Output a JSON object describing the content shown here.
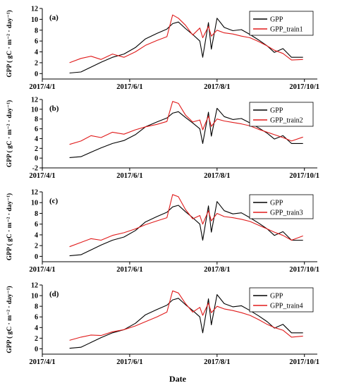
{
  "chart_data": [
    {
      "type": "line",
      "panel_label": "(a)",
      "ylabel": "GPP ( gC · m⁻² · day⁻¹)",
      "ylim": [
        -1,
        12
      ],
      "yticks": [
        0,
        2,
        4,
        6,
        8,
        10,
        12
      ],
      "xlim": [
        "2017-04-01",
        "2017-10-10"
      ],
      "xtick_labels": [
        "2017/4/1",
        "2017/6/1",
        "2017/8/1",
        "2017/10/1"
      ],
      "xtick_dates": [
        "2017-04-01",
        "2017-06-01",
        "2017-08-01",
        "2017-10-01"
      ],
      "legend_position": "top-right",
      "series": [
        {
          "name": "GPP",
          "color": "#000000",
          "x": [
            "2017-04-20",
            "2017-04-28",
            "2017-05-05",
            "2017-05-12",
            "2017-05-20",
            "2017-05-28",
            "2017-06-05",
            "2017-06-12",
            "2017-06-20",
            "2017-06-27",
            "2017-07-01",
            "2017-07-05",
            "2017-07-10",
            "2017-07-15",
            "2017-07-20",
            "2017-07-22",
            "2017-07-26",
            "2017-07-28",
            "2017-08-01",
            "2017-08-06",
            "2017-08-12",
            "2017-08-18",
            "2017-08-24",
            "2017-08-30",
            "2017-09-05",
            "2017-09-10",
            "2017-09-16",
            "2017-09-22",
            "2017-09-30"
          ],
          "y": [
            0.1,
            0.3,
            1.2,
            2.1,
            3.0,
            3.6,
            4.8,
            6.4,
            7.4,
            8.2,
            9.2,
            9.5,
            8.3,
            7.2,
            6.0,
            3.0,
            9.4,
            4.5,
            10.2,
            8.5,
            7.9,
            8.1,
            7.2,
            6.2,
            5.1,
            3.9,
            4.6,
            3.0,
            3.0
          ]
        },
        {
          "name": "GPP_train1",
          "color": "#e01b1b",
          "x": [
            "2017-04-20",
            "2017-04-28",
            "2017-05-05",
            "2017-05-12",
            "2017-05-20",
            "2017-05-28",
            "2017-06-05",
            "2017-06-12",
            "2017-06-20",
            "2017-06-27",
            "2017-07-01",
            "2017-07-05",
            "2017-07-10",
            "2017-07-15",
            "2017-07-20",
            "2017-07-22",
            "2017-07-26",
            "2017-07-28",
            "2017-08-01",
            "2017-08-06",
            "2017-08-12",
            "2017-08-18",
            "2017-08-24",
            "2017-08-30",
            "2017-09-05",
            "2017-09-10",
            "2017-09-16",
            "2017-09-22",
            "2017-09-30"
          ],
          "y": [
            2.0,
            2.8,
            3.2,
            2.6,
            3.6,
            3.0,
            4.0,
            5.2,
            6.1,
            6.8,
            10.8,
            10.2,
            8.9,
            7.1,
            8.4,
            6.6,
            8.7,
            6.9,
            8.0,
            7.5,
            7.3,
            6.9,
            6.6,
            5.9,
            5.1,
            4.3,
            3.7,
            2.5,
            2.6
          ]
        }
      ]
    },
    {
      "type": "line",
      "panel_label": "(b)",
      "ylabel": "GPP ( gC · m⁻² · day⁻¹)",
      "ylim": [
        -2,
        12
      ],
      "yticks": [
        -2,
        0,
        2,
        4,
        6,
        8,
        10,
        12
      ],
      "xlim": [
        "2017-04-01",
        "2017-10-10"
      ],
      "xtick_labels": [
        "2017/4/1",
        "2017/6/1",
        "2017/8/1",
        "2017/10/1"
      ],
      "xtick_dates": [
        "2017-04-01",
        "2017-06-01",
        "2017-08-01",
        "2017-10-01"
      ],
      "legend_position": "top-right",
      "series": [
        {
          "name": "GPP",
          "color": "#000000",
          "x": [
            "2017-04-20",
            "2017-04-28",
            "2017-05-05",
            "2017-05-12",
            "2017-05-20",
            "2017-05-28",
            "2017-06-05",
            "2017-06-12",
            "2017-06-20",
            "2017-06-27",
            "2017-07-01",
            "2017-07-05",
            "2017-07-10",
            "2017-07-15",
            "2017-07-20",
            "2017-07-22",
            "2017-07-26",
            "2017-07-28",
            "2017-08-01",
            "2017-08-06",
            "2017-08-12",
            "2017-08-18",
            "2017-08-24",
            "2017-08-30",
            "2017-09-05",
            "2017-09-10",
            "2017-09-16",
            "2017-09-22",
            "2017-09-30"
          ],
          "y": [
            0.1,
            0.3,
            1.2,
            2.1,
            3.0,
            3.6,
            4.8,
            6.4,
            7.4,
            8.2,
            9.2,
            9.5,
            8.3,
            7.2,
            6.0,
            3.0,
            9.4,
            4.5,
            10.2,
            8.5,
            7.9,
            8.1,
            7.2,
            6.2,
            5.1,
            3.9,
            4.6,
            3.0,
            3.0
          ]
        },
        {
          "name": "GPP_train2",
          "color": "#e01b1b",
          "x": [
            "2017-04-20",
            "2017-04-28",
            "2017-05-05",
            "2017-05-12",
            "2017-05-20",
            "2017-05-28",
            "2017-06-05",
            "2017-06-12",
            "2017-06-20",
            "2017-06-27",
            "2017-07-01",
            "2017-07-05",
            "2017-07-10",
            "2017-07-15",
            "2017-07-20",
            "2017-07-22",
            "2017-07-26",
            "2017-07-28",
            "2017-08-01",
            "2017-08-06",
            "2017-08-12",
            "2017-08-18",
            "2017-08-24",
            "2017-08-30",
            "2017-09-05",
            "2017-09-10",
            "2017-09-16",
            "2017-09-22",
            "2017-09-30"
          ],
          "y": [
            2.8,
            3.5,
            4.6,
            4.2,
            5.3,
            4.9,
            5.8,
            6.4,
            6.9,
            7.5,
            11.6,
            11.2,
            8.8,
            7.4,
            7.8,
            5.8,
            8.6,
            6.5,
            8.0,
            7.6,
            7.3,
            7.0,
            6.6,
            5.9,
            5.3,
            4.8,
            4.2,
            3.5,
            4.3
          ]
        }
      ]
    },
    {
      "type": "line",
      "panel_label": "(c)",
      "ylabel": "GPP ( gC · m⁻² · day⁻¹)",
      "ylim": [
        -1,
        12
      ],
      "yticks": [
        0,
        2,
        4,
        6,
        8,
        10,
        12
      ],
      "xlim": [
        "2017-04-01",
        "2017-10-10"
      ],
      "xtick_labels": [
        "2017/4/1",
        "2017/6/1",
        "2017/8/1",
        "2017/10/1"
      ],
      "xtick_dates": [
        "2017-04-01",
        "2017-06-01",
        "2017-08-01",
        "2017-10-01"
      ],
      "legend_position": "top-right",
      "series": [
        {
          "name": "GPP",
          "color": "#000000",
          "x": [
            "2017-04-20",
            "2017-04-28",
            "2017-05-05",
            "2017-05-12",
            "2017-05-20",
            "2017-05-28",
            "2017-06-05",
            "2017-06-12",
            "2017-06-20",
            "2017-06-27",
            "2017-07-01",
            "2017-07-05",
            "2017-07-10",
            "2017-07-15",
            "2017-07-20",
            "2017-07-22",
            "2017-07-26",
            "2017-07-28",
            "2017-08-01",
            "2017-08-06",
            "2017-08-12",
            "2017-08-18",
            "2017-08-24",
            "2017-08-30",
            "2017-09-05",
            "2017-09-10",
            "2017-09-16",
            "2017-09-22",
            "2017-09-30"
          ],
          "y": [
            0.1,
            0.3,
            1.2,
            2.1,
            3.0,
            3.6,
            4.8,
            6.4,
            7.4,
            8.2,
            9.2,
            9.5,
            8.3,
            7.2,
            6.0,
            3.0,
            9.4,
            4.5,
            10.2,
            8.5,
            7.9,
            8.1,
            7.2,
            6.2,
            5.1,
            3.9,
            4.6,
            3.0,
            3.0
          ]
        },
        {
          "name": "GPP_train3",
          "color": "#e01b1b",
          "x": [
            "2017-04-20",
            "2017-04-28",
            "2017-05-05",
            "2017-05-12",
            "2017-05-20",
            "2017-05-28",
            "2017-06-05",
            "2017-06-12",
            "2017-06-20",
            "2017-06-27",
            "2017-07-01",
            "2017-07-05",
            "2017-07-10",
            "2017-07-15",
            "2017-07-20",
            "2017-07-22",
            "2017-07-26",
            "2017-07-28",
            "2017-08-01",
            "2017-08-06",
            "2017-08-12",
            "2017-08-18",
            "2017-08-24",
            "2017-08-30",
            "2017-09-05",
            "2017-09-10",
            "2017-09-16",
            "2017-09-22",
            "2017-09-30"
          ],
          "y": [
            1.8,
            2.6,
            3.3,
            3.0,
            3.9,
            4.4,
            5.1,
            5.9,
            6.6,
            7.2,
            11.5,
            11.1,
            8.7,
            7.0,
            7.6,
            6.0,
            8.5,
            6.6,
            8.0,
            7.4,
            7.2,
            6.9,
            6.5,
            5.8,
            5.1,
            4.5,
            3.9,
            3.0,
            3.8
          ]
        }
      ]
    },
    {
      "type": "line",
      "panel_label": "(d)",
      "ylabel": "GPP ( gC · m⁻² · day⁻¹)",
      "ylim": [
        -1,
        12
      ],
      "yticks": [
        0,
        2,
        4,
        6,
        8,
        10,
        12
      ],
      "xlim": [
        "2017-04-01",
        "2017-10-10"
      ],
      "xtick_labels": [
        "2017/4/1",
        "2017/6/1",
        "2017/8/1",
        "2017/10/1"
      ],
      "xtick_dates": [
        "2017-04-01",
        "2017-06-01",
        "2017-08-01",
        "2017-10-01"
      ],
      "legend_position": "top-right",
      "series": [
        {
          "name": "GPP",
          "color": "#000000",
          "x": [
            "2017-04-20",
            "2017-04-28",
            "2017-05-05",
            "2017-05-12",
            "2017-05-20",
            "2017-05-28",
            "2017-06-05",
            "2017-06-12",
            "2017-06-20",
            "2017-06-27",
            "2017-07-01",
            "2017-07-05",
            "2017-07-10",
            "2017-07-15",
            "2017-07-20",
            "2017-07-22",
            "2017-07-26",
            "2017-07-28",
            "2017-08-01",
            "2017-08-06",
            "2017-08-12",
            "2017-08-18",
            "2017-08-24",
            "2017-08-30",
            "2017-09-05",
            "2017-09-10",
            "2017-09-16",
            "2017-09-22",
            "2017-09-30"
          ],
          "y": [
            0.1,
            0.3,
            1.2,
            2.1,
            3.0,
            3.6,
            4.8,
            6.4,
            7.4,
            8.2,
            9.2,
            9.5,
            8.3,
            7.2,
            6.0,
            3.0,
            9.4,
            4.5,
            10.2,
            8.5,
            7.9,
            8.1,
            7.2,
            6.2,
            5.1,
            3.9,
            4.6,
            3.0,
            3.0
          ]
        },
        {
          "name": "GPP_train4",
          "color": "#e01b1b",
          "x": [
            "2017-04-20",
            "2017-04-28",
            "2017-05-05",
            "2017-05-12",
            "2017-05-20",
            "2017-05-28",
            "2017-06-05",
            "2017-06-12",
            "2017-06-20",
            "2017-06-27",
            "2017-07-01",
            "2017-07-05",
            "2017-07-10",
            "2017-07-15",
            "2017-07-20",
            "2017-07-22",
            "2017-07-26",
            "2017-07-28",
            "2017-08-01",
            "2017-08-06",
            "2017-08-12",
            "2017-08-18",
            "2017-08-24",
            "2017-08-30",
            "2017-09-05",
            "2017-09-10",
            "2017-09-16",
            "2017-09-22",
            "2017-09-30"
          ],
          "y": [
            1.6,
            2.2,
            2.6,
            2.5,
            3.2,
            3.6,
            4.3,
            5.1,
            6.0,
            6.9,
            10.9,
            10.5,
            8.5,
            6.9,
            7.8,
            6.3,
            8.6,
            6.8,
            8.0,
            7.5,
            7.2,
            6.8,
            6.3,
            5.5,
            4.6,
            4.0,
            3.5,
            2.2,
            2.4
          ]
        }
      ]
    }
  ],
  "figure": {
    "xlabel": "Date"
  }
}
